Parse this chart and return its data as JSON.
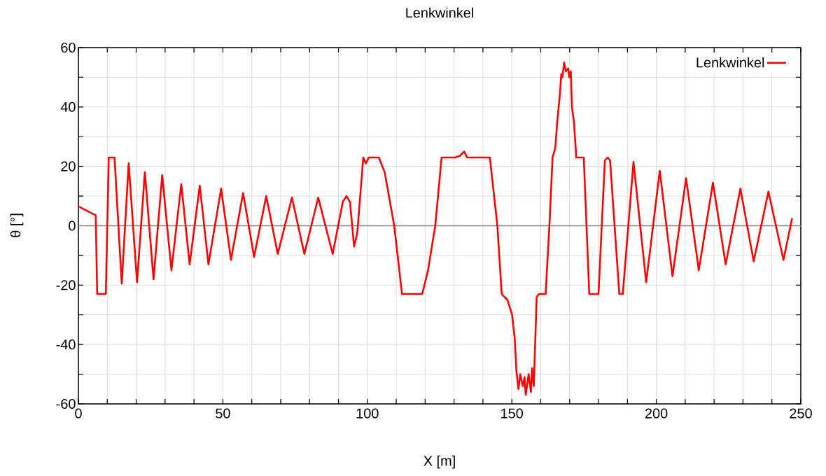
{
  "chart_data": {
    "type": "line",
    "title": "Lenkwinkel",
    "xlabel": "X [m]",
    "ylabel": "θ [°]",
    "xlim": [
      0,
      250
    ],
    "ylim": [
      -60,
      60
    ],
    "xticks": [
      0,
      {
        "value": 10,
        "label": null
      },
      {
        "value": 20,
        "label": null
      },
      {
        "value": 30,
        "label": null
      },
      {
        "value": 40,
        "label": null
      },
      50,
      {
        "value": 60,
        "label": null
      },
      {
        "value": 70,
        "label": null
      },
      {
        "value": 80,
        "label": null
      },
      {
        "value": 90,
        "label": null
      },
      100,
      {
        "value": 110,
        "label": null
      },
      {
        "value": 120,
        "label": null
      },
      {
        "value": 130,
        "label": null
      },
      {
        "value": 140,
        "label": null
      },
      150,
      {
        "value": 160,
        "label": null
      },
      {
        "value": 170,
        "label": null
      },
      {
        "value": 180,
        "label": null
      },
      {
        "value": 190,
        "label": null
      },
      200,
      {
        "value": 210,
        "label": null
      },
      {
        "value": 220,
        "label": null
      },
      {
        "value": 230,
        "label": null
      },
      {
        "value": 240,
        "label": null
      },
      250
    ],
    "yticks": [
      -60,
      {
        "value": -50,
        "label": null
      },
      -40,
      {
        "value": -30,
        "label": null
      },
      -20,
      {
        "value": -10,
        "label": null
      },
      0,
      {
        "value": 10,
        "label": null
      },
      20,
      {
        "value": 30,
        "label": null
      },
      40,
      {
        "value": 50,
        "label": null
      },
      60
    ],
    "grid": true,
    "legend": "top right",
    "marker": "none",
    "line_style": "solid",
    "ref_lines": [
      {
        "axis": "y",
        "value": 0,
        "color": "#808080"
      }
    ],
    "series": [
      {
        "name": "Lenkwinkel",
        "color": "#ff0000",
        "x": [
          0,
          6,
          6.5,
          9.5,
          10.5,
          12.5,
          15,
          17.4,
          20.3,
          23,
          26,
          29,
          32.2,
          35.6,
          38.5,
          42,
          45,
          49.4,
          52.8,
          57,
          60.8,
          65,
          69,
          73.9,
          78.2,
          83,
          88,
          91.5,
          92.8,
          94,
          95.4,
          96.5,
          98.6,
          99.5,
          100.5,
          104,
          106,
          109.3,
          112,
          119,
          121,
          123.5,
          125.7,
          130.3,
          132,
          133.5,
          134.5,
          135,
          142.4,
          145,
          146.5,
          148.5,
          150.1,
          151,
          151.6,
          152.3,
          152.9,
          153.8,
          154.4,
          154.8,
          155.8,
          156.6,
          157,
          157.6,
          158.6,
          159.4,
          161.7,
          163,
          164.1,
          165,
          165.9,
          166.7,
          167.1,
          167.5,
          168.1,
          168.7,
          169.5,
          169.9,
          170.4,
          170.8,
          171.5,
          172.3,
          174.9,
          176.8,
          180,
          182.2,
          183.2,
          184,
          187.2,
          188.4,
          192.1,
          196.5,
          201.2,
          205.6,
          210.3,
          214.7,
          219.6,
          224,
          229.1,
          233.7,
          238.8,
          244,
          247
        ],
        "values": [
          6.5,
          3.5,
          -23,
          -23,
          23,
          23,
          -19.5,
          21,
          -19,
          18,
          -18,
          17,
          -15,
          14,
          -13,
          13.5,
          -13,
          12.5,
          -11.5,
          11,
          -10.5,
          10,
          -9.5,
          9.5,
          -9.5,
          9.5,
          -9.5,
          8,
          10,
          8,
          -7,
          -2.5,
          23,
          21,
          23,
          23,
          18,
          0,
          -23,
          -23,
          -15,
          0,
          23,
          23,
          23.5,
          25,
          23,
          23,
          23,
          0,
          -23,
          -25,
          -30,
          -38,
          -49,
          -55,
          -50,
          -54,
          -51,
          -57,
          -50,
          -56,
          -48,
          -54,
          -24,
          -23,
          -23,
          0,
          23,
          26,
          37,
          45,
          51,
          50,
          55,
          52,
          53,
          50,
          52,
          40,
          35,
          23,
          23,
          -23,
          -23,
          22,
          23,
          22,
          -23,
          -23,
          21.5,
          -19,
          18.5,
          -17,
          16,
          -15,
          14.5,
          -13,
          12.5,
          -12,
          11.5,
          -11.5,
          2.5
        ]
      }
    ]
  }
}
